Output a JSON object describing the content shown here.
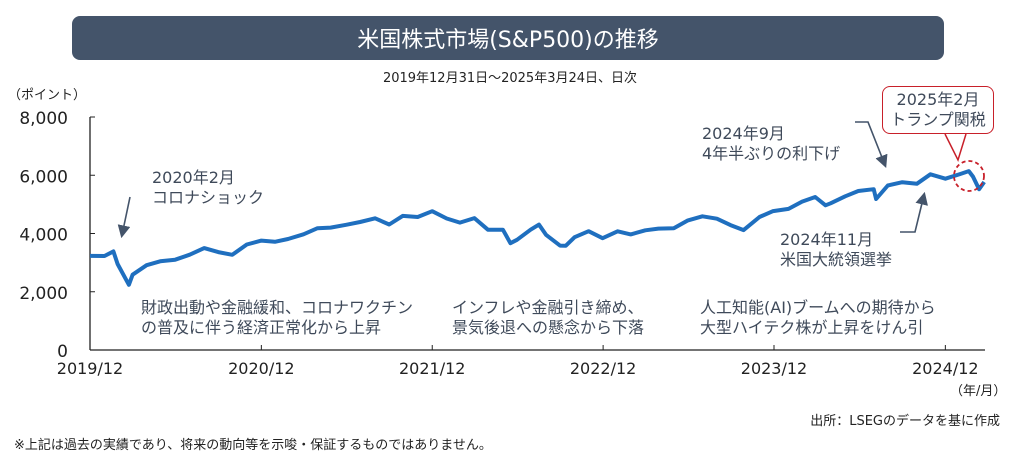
{
  "title": "米国株式市場(S&P500)の推移",
  "subtitle": "2019年12月31日～2025年3月24日、日次",
  "y_unit": "（ポイント）",
  "x_unit": "（年/月）",
  "source": "出所：LSEGのデータを基に作成",
  "note": "※上記は過去の実績であり、将来の動向等を示唆・保証するものではありません。",
  "annotations": {
    "covid": [
      "2020年2月",
      "コロナショック"
    ],
    "phase1": [
      "財政出動や金融緩和、コロナワクチン",
      "の普及に伴う経済正常化から上昇"
    ],
    "phase2": [
      "インフレや金融引き締め、",
      "景気後退への懸念から下落"
    ],
    "phase3": [
      "人工知能(AI)ブームへの期待から",
      "大型ハイテク株が上昇をけん引"
    ],
    "ratecut": [
      "2024年9月",
      "4年半ぶりの利下げ"
    ],
    "election": [
      "2024年11月",
      "米国大統領選挙"
    ],
    "tariff": [
      "2025年2月",
      "トランプ関税"
    ]
  },
  "colors": {
    "line": "#1f6fbf",
    "title_bg": "#44546a",
    "callout": "#c8202a",
    "arrow": "#44546a"
  },
  "chart_data": {
    "type": "line",
    "title": "米国株式市場(S&P500)の推移",
    "xlabel": "（年/月）",
    "ylabel": "（ポイント）",
    "ylim": [
      0,
      8000
    ],
    "yticks": [
      0,
      2000,
      4000,
      6000,
      8000
    ],
    "ytick_labels": [
      "0",
      "2,000",
      "4,000",
      "6,000",
      "8,000"
    ],
    "xticks": [
      "2019-12-31",
      "2020-12-31",
      "2021-12-31",
      "2022-12-31",
      "2023-12-31",
      "2024-12-31"
    ],
    "xtick_labels": [
      "2019/12",
      "2020/12",
      "2021/12",
      "2022/12",
      "2023/12",
      "2024/12"
    ],
    "xlim": [
      "2019-12-31",
      "2025-03-24"
    ],
    "series": [
      {
        "name": "S&P500",
        "points": [
          [
            "2019-12-31",
            3231
          ],
          [
            "2020-01-31",
            3226
          ],
          [
            "2020-02-19",
            3386
          ],
          [
            "2020-02-28",
            2954
          ],
          [
            "2020-03-23",
            2237
          ],
          [
            "2020-03-31",
            2585
          ],
          [
            "2020-04-30",
            2912
          ],
          [
            "2020-05-29",
            3044
          ],
          [
            "2020-06-30",
            3100
          ],
          [
            "2020-07-31",
            3271
          ],
          [
            "2020-08-31",
            3500
          ],
          [
            "2020-09-30",
            3363
          ],
          [
            "2020-10-30",
            3270
          ],
          [
            "2020-11-30",
            3622
          ],
          [
            "2020-12-31",
            3756
          ],
          [
            "2021-01-29",
            3714
          ],
          [
            "2021-02-26",
            3811
          ],
          [
            "2021-03-31",
            3973
          ],
          [
            "2021-04-30",
            4181
          ],
          [
            "2021-05-28",
            4204
          ],
          [
            "2021-06-30",
            4298
          ],
          [
            "2021-07-30",
            4395
          ],
          [
            "2021-08-31",
            4523
          ],
          [
            "2021-09-30",
            4308
          ],
          [
            "2021-10-29",
            4605
          ],
          [
            "2021-11-30",
            4567
          ],
          [
            "2021-12-31",
            4766
          ],
          [
            "2022-01-31",
            4516
          ],
          [
            "2022-02-28",
            4374
          ],
          [
            "2022-03-31",
            4530
          ],
          [
            "2022-04-29",
            4132
          ],
          [
            "2022-05-31",
            4132
          ],
          [
            "2022-06-16",
            3667
          ],
          [
            "2022-06-30",
            3785
          ],
          [
            "2022-07-29",
            4130
          ],
          [
            "2022-08-16",
            4305
          ],
          [
            "2022-08-31",
            3955
          ],
          [
            "2022-09-30",
            3586
          ],
          [
            "2022-10-12",
            3577
          ],
          [
            "2022-10-31",
            3872
          ],
          [
            "2022-11-30",
            4080
          ],
          [
            "2022-12-30",
            3840
          ],
          [
            "2023-01-31",
            4077
          ],
          [
            "2023-02-28",
            3970
          ],
          [
            "2023-03-31",
            4109
          ],
          [
            "2023-04-28",
            4169
          ],
          [
            "2023-05-31",
            4180
          ],
          [
            "2023-06-30",
            4450
          ],
          [
            "2023-07-31",
            4589
          ],
          [
            "2023-08-31",
            4508
          ],
          [
            "2023-09-29",
            4288
          ],
          [
            "2023-10-27",
            4117
          ],
          [
            "2023-11-30",
            4568
          ],
          [
            "2023-12-29",
            4770
          ],
          [
            "2024-01-31",
            4846
          ],
          [
            "2024-02-29",
            5096
          ],
          [
            "2024-03-28",
            5254
          ],
          [
            "2024-04-19",
            4967
          ],
          [
            "2024-04-30",
            5036
          ],
          [
            "2024-05-31",
            5278
          ],
          [
            "2024-06-28",
            5460
          ],
          [
            "2024-07-31",
            5522
          ],
          [
            "2024-08-05",
            5186
          ],
          [
            "2024-08-30",
            5648
          ],
          [
            "2024-09-30",
            5762
          ],
          [
            "2024-10-31",
            5705
          ],
          [
            "2024-11-29",
            6032
          ],
          [
            "2024-12-31",
            5882
          ],
          [
            "2025-01-31",
            6041
          ],
          [
            "2025-02-19",
            6144
          ],
          [
            "2025-02-28",
            5955
          ],
          [
            "2025-03-13",
            5521
          ],
          [
            "2025-03-24",
            5768
          ]
        ]
      }
    ]
  }
}
